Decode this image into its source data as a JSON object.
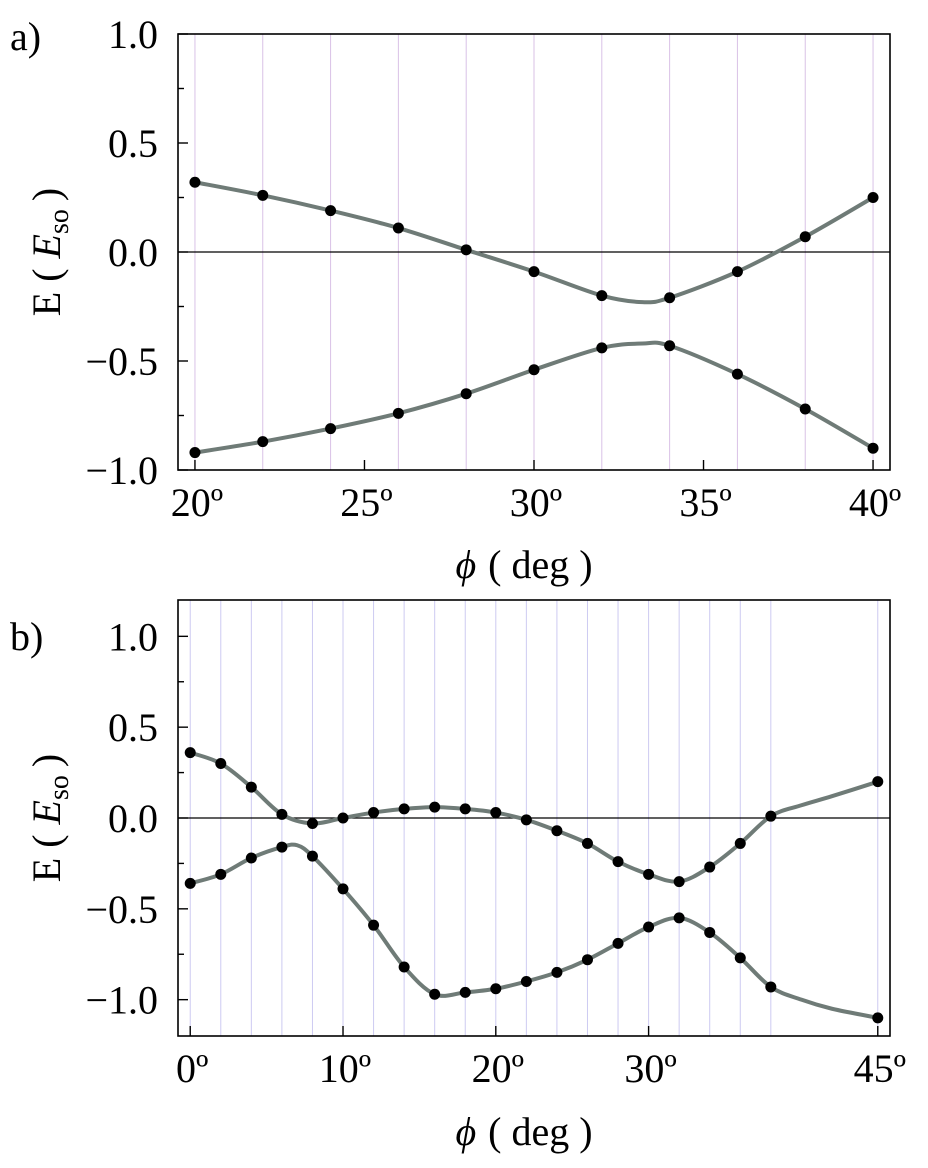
{
  "chart_data": [
    {
      "panel_label": "a)",
      "type": "line",
      "xlabel": "ϕ",
      "xlabel_unit": "( deg )",
      "ylabel_prefix": "E (",
      "ylabel_symbol": "E",
      "ylabel_subscript": "so",
      "ylabel_suffix": ")",
      "xlim": [
        19.5,
        40.5
      ],
      "ylim": [
        -1.0,
        1.0
      ],
      "x_ticks": [
        20,
        25,
        30,
        35,
        40
      ],
      "x_tick_labels": [
        "20º",
        "25º",
        "30º",
        "35º",
        "40º"
      ],
      "y_ticks": [
        1.0,
        0.5,
        0.0,
        -0.5,
        -1.0
      ],
      "y_tick_labels": [
        "1.0",
        "0.5",
        "0.0",
        "−0.5",
        "−1.0"
      ],
      "zero_line": true,
      "stem_color": "#c9a8dc",
      "curve_color": "#6f7b77",
      "series": [
        {
          "x": [
            20,
            22,
            24,
            26,
            28,
            30,
            32,
            34,
            36,
            38,
            40
          ],
          "values": [
            0.32,
            0.26,
            0.19,
            0.11,
            0.01,
            -0.09,
            -0.2,
            -0.21,
            -0.09,
            0.07,
            0.25
          ],
          "curve_x": [
            20,
            22,
            24,
            26,
            28,
            30,
            32,
            33.2,
            34,
            36,
            38,
            40
          ],
          "curve_values": [
            0.32,
            0.26,
            0.19,
            0.11,
            0.01,
            -0.09,
            -0.2,
            -0.23,
            -0.21,
            -0.09,
            0.07,
            0.25
          ]
        },
        {
          "x": [
            20,
            22,
            24,
            26,
            28,
            30,
            32,
            34,
            36,
            38,
            40
          ],
          "values": [
            -0.92,
            -0.87,
            -0.81,
            -0.74,
            -0.65,
            -0.54,
            -0.44,
            -0.43,
            -0.56,
            -0.72,
            -0.9
          ],
          "curve_x": [
            20,
            22,
            24,
            26,
            28,
            30,
            32,
            33.2,
            34,
            36,
            38,
            40
          ],
          "curve_values": [
            -0.92,
            -0.87,
            -0.81,
            -0.74,
            -0.65,
            -0.54,
            -0.44,
            -0.42,
            -0.43,
            -0.56,
            -0.72,
            -0.9
          ]
        }
      ]
    },
    {
      "panel_label": "b)",
      "type": "line",
      "xlabel": "ϕ",
      "xlabel_unit": "( deg )",
      "ylabel_prefix": "E (",
      "ylabel_symbol": "E",
      "ylabel_subscript": "so",
      "ylabel_suffix": ")",
      "xlim": [
        -0.8,
        45.8
      ],
      "ylim": [
        -1.2,
        1.2
      ],
      "x_ticks": [
        0,
        10,
        20,
        30,
        45
      ],
      "x_tick_labels": [
        "0º",
        "10º",
        "20º",
        "30º",
        "45º"
      ],
      "y_ticks": [
        1.0,
        0.5,
        0.0,
        -0.5,
        -1.0
      ],
      "y_tick_labels": [
        "1.0",
        "0.5",
        "0.0",
        "−0.5",
        "−1.0"
      ],
      "zero_line": true,
      "stem_color": "#b8b4ec",
      "curve_color": "#6f7b77",
      "series": [
        {
          "x": [
            0,
            2,
            4,
            6,
            8,
            10,
            12,
            14,
            16,
            18,
            20,
            22,
            24,
            26,
            28,
            30,
            32,
            34,
            36,
            38,
            45
          ],
          "values": [
            0.36,
            0.3,
            0.17,
            0.02,
            -0.03,
            0.0,
            0.03,
            0.05,
            0.06,
            0.05,
            0.03,
            -0.01,
            -0.07,
            -0.14,
            -0.24,
            -0.31,
            -0.35,
            -0.27,
            -0.14,
            0.01,
            0.2
          ],
          "curve_x": [
            0,
            2,
            4,
            6,
            8,
            10,
            12,
            14,
            16,
            18,
            20,
            22,
            24,
            26,
            28,
            30,
            32,
            34,
            36,
            38,
            40,
            42,
            45
          ],
          "curve_values": [
            0.36,
            0.3,
            0.17,
            0.02,
            -0.03,
            0.0,
            0.03,
            0.05,
            0.06,
            0.05,
            0.03,
            -0.01,
            -0.07,
            -0.14,
            -0.24,
            -0.31,
            -0.35,
            -0.27,
            -0.14,
            0.01,
            0.07,
            0.12,
            0.2
          ]
        },
        {
          "x": [
            0,
            2,
            4,
            6,
            8,
            10,
            12,
            14,
            16,
            18,
            20,
            22,
            24,
            26,
            28,
            30,
            32,
            34,
            36,
            38,
            45
          ],
          "values": [
            -0.36,
            -0.31,
            -0.22,
            -0.16,
            -0.21,
            -0.39,
            -0.59,
            -0.82,
            -0.97,
            -0.96,
            -0.94,
            -0.9,
            -0.85,
            -0.78,
            -0.69,
            -0.6,
            -0.55,
            -0.63,
            -0.77,
            -0.93,
            -1.1
          ],
          "curve_x": [
            0,
            2,
            4,
            6,
            7,
            8,
            10,
            12,
            14,
            16,
            18,
            20,
            22,
            24,
            26,
            28,
            30,
            32,
            34,
            36,
            38,
            40,
            42,
            45
          ],
          "curve_values": [
            -0.36,
            -0.31,
            -0.22,
            -0.16,
            -0.15,
            -0.21,
            -0.39,
            -0.59,
            -0.82,
            -0.97,
            -0.96,
            -0.94,
            -0.9,
            -0.85,
            -0.78,
            -0.69,
            -0.6,
            -0.55,
            -0.63,
            -0.77,
            -0.93,
            -1.0,
            -1.05,
            -1.1
          ]
        }
      ]
    }
  ]
}
